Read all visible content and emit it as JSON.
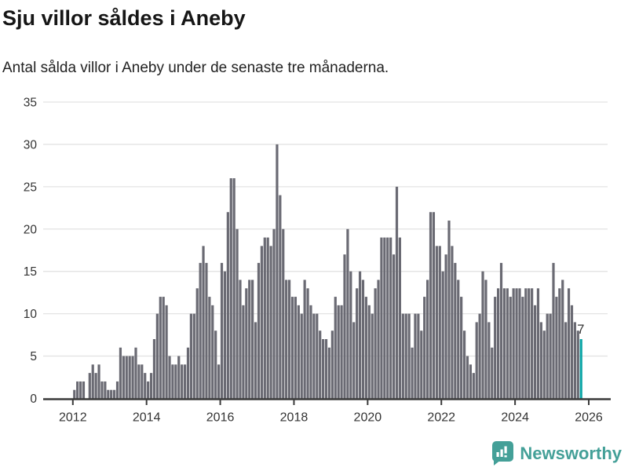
{
  "chart_data": {
    "type": "bar",
    "title": "Sju villor såldes i Aneby",
    "subtitle": "Antal sålda villor i Aneby under de senaste tre månaderna.",
    "ylabel": "",
    "xlabel": "",
    "ylim": [
      0,
      35
    ],
    "yticks": [
      0,
      5,
      10,
      15,
      20,
      25,
      30,
      35
    ],
    "xticks": [
      2012,
      2014,
      2016,
      2018,
      2020,
      2022,
      2024,
      2026
    ],
    "grid": "horizontal",
    "legend": "none",
    "start_year": 2012,
    "start_month": 1,
    "values": [
      1,
      2,
      2,
      2,
      0,
      3,
      4,
      3,
      4,
      2,
      2,
      1,
      1,
      1,
      2,
      6,
      5,
      5,
      5,
      5,
      6,
      4,
      4,
      3,
      2,
      3,
      7,
      10,
      12,
      12,
      11,
      5,
      4,
      4,
      5,
      4,
      4,
      6,
      10,
      10,
      13,
      16,
      18,
      16,
      12,
      11,
      8,
      4,
      16,
      15,
      22,
      26,
      26,
      20,
      14,
      11,
      13,
      14,
      14,
      9,
      16,
      18,
      19,
      19,
      18,
      20,
      30,
      24,
      20,
      14,
      14,
      12,
      12,
      11,
      10,
      14,
      13,
      11,
      10,
      10,
      8,
      7,
      7,
      6,
      8,
      12,
      11,
      11,
      17,
      20,
      15,
      9,
      13,
      15,
      14,
      12,
      11,
      10,
      13,
      14,
      19,
      19,
      19,
      19,
      17,
      25,
      19,
      10,
      10,
      10,
      6,
      10,
      10,
      8,
      12,
      14,
      22,
      22,
      18,
      18,
      15,
      17,
      21,
      18,
      16,
      14,
      12,
      8,
      5,
      4,
      3,
      9,
      10,
      15,
      14,
      9,
      6,
      12,
      13,
      16,
      13,
      13,
      12,
      13,
      13,
      13,
      12,
      13,
      13,
      13,
      11,
      13,
      9,
      8,
      10,
      10,
      16,
      12,
      13,
      14,
      9,
      13,
      11,
      9,
      8,
      7
    ],
    "highlight_last": true,
    "annotation": {
      "label": "7",
      "applies_to": "last-bar"
    },
    "colors": {
      "bar": "#6a6a73",
      "highlight": "#0da5a6",
      "grid": "#e3e3e3",
      "axis": "#3a3a3a",
      "tick_text": "#333333",
      "annotation_text": "#333333"
    }
  },
  "branding": {
    "logo_text": "Newsworthy",
    "logo_color": "#44a098",
    "logo_icon": "speech-bubble-bar-chart"
  }
}
